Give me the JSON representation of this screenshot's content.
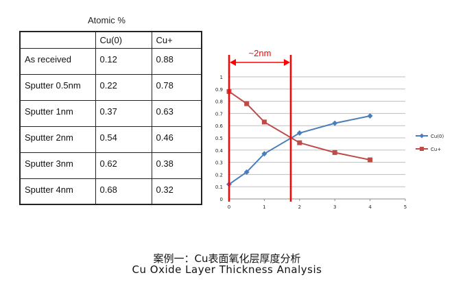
{
  "table": {
    "caption": "Atomic %",
    "headers": [
      "",
      "Cu(0)",
      "Cu+"
    ],
    "rows": [
      [
        "As received",
        "0.12",
        "0.88"
      ],
      [
        "Sputter 0.5nm",
        "0.22",
        "0.78"
      ],
      [
        "Sputter 1nm",
        "0.37",
        "0.63"
      ],
      [
        "Sputter 2nm",
        "0.54",
        "0.46"
      ],
      [
        "Sputter 3nm",
        "0.62",
        "0.38"
      ],
      [
        "Sputter 4nm",
        "0.68",
        "0.32"
      ]
    ]
  },
  "chart_data": {
    "type": "line",
    "x": [
      0,
      0.5,
      1,
      2,
      3,
      4
    ],
    "series": [
      {
        "name": "Cu(0)",
        "values": [
          0.12,
          0.22,
          0.37,
          0.54,
          0.62,
          0.68
        ],
        "color": "#4a7ebb",
        "marker": "diamond"
      },
      {
        "name": "Cu+",
        "values": [
          0.88,
          0.78,
          0.63,
          0.46,
          0.38,
          0.32
        ],
        "color": "#be4b48",
        "marker": "square"
      }
    ],
    "xlim": [
      0,
      5
    ],
    "ylim": [
      0,
      1
    ],
    "xticks": [
      "0",
      "1",
      "2",
      "3",
      "4",
      "5"
    ],
    "yticks": [
      "0",
      "0.1",
      "0.2",
      "0.3",
      "0.4",
      "0.5",
      "0.6",
      "0.7",
      "0.8",
      "0.9",
      "1"
    ],
    "grid": true,
    "legend_position": "right",
    "annotation": {
      "label": "~2nm",
      "x_start": 0,
      "x_end": 1.75,
      "color": "#ff0000"
    }
  },
  "caption": {
    "cn": "案例一：Cu表面氧化层厚度分析",
    "en": "Cu Oxide Layer Thickness Analysis"
  }
}
